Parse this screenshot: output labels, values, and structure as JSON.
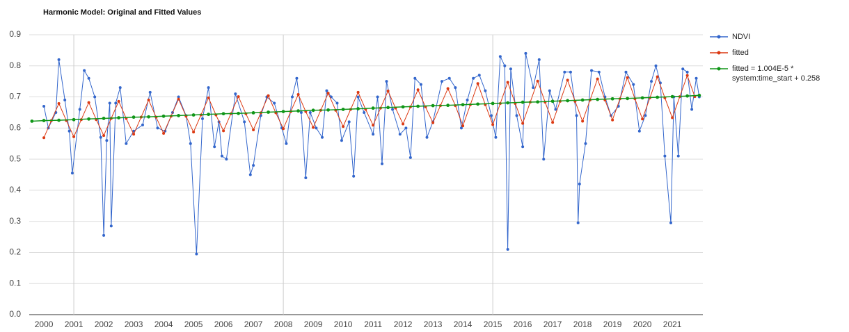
{
  "chart_data": {
    "type": "line",
    "title": "Harmonic Model: Original and Fitted Values",
    "xlim": [
      1999.51,
      2022.02
    ],
    "xticks": [
      2000,
      2001,
      2002,
      2003,
      2004,
      2005,
      2006,
      2007,
      2008,
      2009,
      2010,
      2011,
      2012,
      2013,
      2014,
      2015,
      2016,
      2017,
      2018,
      2019,
      2020,
      2021
    ],
    "xgrid": [
      2001,
      2008,
      2015
    ],
    "ylim": [
      0,
      0.9
    ],
    "yticks": [
      {
        "value": 0,
        "label": "0.0"
      },
      0.1,
      0.2,
      0.3,
      0.4,
      0.5,
      0.6,
      0.7,
      0.8,
      0.9
    ],
    "grid": true,
    "legend": "right",
    "series": [
      {
        "name": "NDVI",
        "color": "#3366cc",
        "x": [
          2000.0,
          2000.15,
          2000.4,
          2000.5,
          2000.7,
          2000.85,
          2000.95,
          2001.2,
          2001.35,
          2001.5,
          2001.7,
          2001.9,
          2002.0,
          2002.1,
          2002.2,
          2002.25,
          2002.4,
          2002.55,
          2002.75,
          2003.0,
          2003.3,
          2003.55,
          2003.8,
          2004.05,
          2004.3,
          2004.5,
          2004.75,
          2004.9,
          2005.1,
          2005.3,
          2005.5,
          2005.7,
          2005.85,
          2005.95,
          2006.1,
          2006.4,
          2006.7,
          2006.9,
          2007.0,
          2007.25,
          2007.45,
          2007.7,
          2007.95,
          2008.1,
          2008.3,
          2008.45,
          2008.6,
          2008.75,
          2008.9,
          2009.1,
          2009.3,
          2009.45,
          2009.6,
          2009.8,
          2009.95,
          2010.2,
          2010.35,
          2010.5,
          2010.7,
          2011.0,
          2011.15,
          2011.3,
          2011.45,
          2011.65,
          2011.9,
          2012.1,
          2012.25,
          2012.4,
          2012.6,
          2012.8,
          2013.0,
          2013.3,
          2013.55,
          2013.75,
          2013.95,
          2014.15,
          2014.35,
          2014.55,
          2014.75,
          2014.95,
          2015.1,
          2015.25,
          2015.4,
          2015.5,
          2015.6,
          2015.8,
          2016.0,
          2016.1,
          2016.35,
          2016.55,
          2016.7,
          2016.9,
          2017.1,
          2017.4,
          2017.6,
          2017.8,
          2017.85,
          2017.9,
          2018.1,
          2018.3,
          2018.55,
          2018.75,
          2018.95,
          2019.2,
          2019.45,
          2019.7,
          2019.9,
          2020.1,
          2020.3,
          2020.45,
          2020.6,
          2020.75,
          2020.95,
          2021.05,
          2021.2,
          2021.35,
          2021.5,
          2021.65,
          2021.8,
          2021.9
        ],
        "values": [
          0.67,
          0.6,
          0.65,
          0.82,
          0.69,
          0.59,
          0.455,
          0.66,
          0.785,
          0.76,
          0.7,
          0.57,
          0.255,
          0.56,
          0.68,
          0.285,
          0.68,
          0.73,
          0.55,
          0.59,
          0.61,
          0.715,
          0.6,
          0.59,
          0.65,
          0.7,
          0.64,
          0.55,
          0.195,
          0.63,
          0.73,
          0.54,
          0.62,
          0.51,
          0.5,
          0.71,
          0.62,
          0.45,
          0.48,
          0.64,
          0.7,
          0.68,
          0.6,
          0.55,
          0.7,
          0.76,
          0.65,
          0.44,
          0.65,
          0.6,
          0.57,
          0.72,
          0.7,
          0.68,
          0.56,
          0.62,
          0.445,
          0.7,
          0.65,
          0.58,
          0.7,
          0.485,
          0.75,
          0.66,
          0.58,
          0.6,
          0.505,
          0.76,
          0.74,
          0.57,
          0.62,
          0.75,
          0.76,
          0.73,
          0.6,
          0.69,
          0.76,
          0.77,
          0.72,
          0.64,
          0.57,
          0.83,
          0.8,
          0.21,
          0.79,
          0.64,
          0.54,
          0.84,
          0.73,
          0.82,
          0.5,
          0.72,
          0.66,
          0.78,
          0.78,
          0.64,
          0.295,
          0.42,
          0.55,
          0.785,
          0.78,
          0.7,
          0.64,
          0.67,
          0.78,
          0.74,
          0.59,
          0.64,
          0.75,
          0.8,
          0.745,
          0.51,
          0.295,
          0.7,
          0.51,
          0.79,
          0.78,
          0.66,
          0.76,
          0.7
        ]
      },
      {
        "name": "fitted",
        "color": "#dc3912",
        "x": [
          2000.0,
          2000.25,
          2000.5,
          2000.75,
          2001.0,
          2001.25,
          2001.5,
          2001.75,
          2002.0,
          2002.25,
          2002.5,
          2002.75,
          2003.0,
          2003.25,
          2003.5,
          2003.75,
          2004.0,
          2004.25,
          2004.5,
          2004.75,
          2005.0,
          2005.25,
          2005.5,
          2005.75,
          2006.0,
          2006.25,
          2006.5,
          2006.75,
          2007.0,
          2007.25,
          2007.5,
          2007.75,
          2008.0,
          2008.25,
          2008.5,
          2008.75,
          2009.0,
          2009.25,
          2009.5,
          2009.75,
          2010.0,
          2010.25,
          2010.5,
          2010.75,
          2011.0,
          2011.25,
          2011.5,
          2011.75,
          2012.0,
          2012.25,
          2012.5,
          2012.75,
          2013.0,
          2013.25,
          2013.5,
          2013.75,
          2014.0,
          2014.25,
          2014.5,
          2014.75,
          2015.0,
          2015.25,
          2015.5,
          2015.75,
          2016.0,
          2016.25,
          2016.5,
          2016.75,
          2017.0,
          2017.25,
          2017.5,
          2017.75,
          2018.0,
          2018.25,
          2018.5,
          2018.75,
          2019.0,
          2019.25,
          2019.5,
          2019.75,
          2020.0,
          2020.25,
          2020.5,
          2020.75,
          2021.0,
          2021.25,
          2021.5,
          2021.75
        ],
        "values": [
          0.569,
          0.624,
          0.679,
          0.624,
          0.572,
          0.627,
          0.682,
          0.627,
          0.576,
          0.631,
          0.686,
          0.631,
          0.58,
          0.635,
          0.69,
          0.635,
          0.583,
          0.638,
          0.693,
          0.638,
          0.587,
          0.642,
          0.697,
          0.642,
          0.591,
          0.646,
          0.701,
          0.646,
          0.594,
          0.649,
          0.704,
          0.649,
          0.598,
          0.653,
          0.708,
          0.653,
          0.602,
          0.657,
          0.712,
          0.657,
          0.605,
          0.66,
          0.715,
          0.66,
          0.609,
          0.664,
          0.719,
          0.664,
          0.613,
          0.668,
          0.723,
          0.668,
          0.617,
          0.672,
          0.727,
          0.672,
          0.607,
          0.675,
          0.743,
          0.675,
          0.611,
          0.679,
          0.747,
          0.679,
          0.615,
          0.683,
          0.751,
          0.683,
          0.618,
          0.686,
          0.754,
          0.686,
          0.622,
          0.69,
          0.758,
          0.69,
          0.626,
          0.694,
          0.762,
          0.694,
          0.629,
          0.697,
          0.765,
          0.697,
          0.633,
          0.701,
          0.769,
          0.701
        ]
      },
      {
        "name": "fitted = 1.004E-5 * system:time_start + 0.258",
        "color": "#109618",
        "x": [
          1999.6,
          2000.0,
          2000.5,
          2001.0,
          2001.5,
          2002.0,
          2002.5,
          2003.0,
          2003.5,
          2004.0,
          2004.5,
          2005.0,
          2005.5,
          2006.0,
          2006.5,
          2007.0,
          2007.5,
          2008.0,
          2008.5,
          2009.0,
          2009.5,
          2010.0,
          2010.5,
          2011.0,
          2011.5,
          2012.0,
          2012.5,
          2013.0,
          2013.5,
          2014.0,
          2014.5,
          2015.0,
          2015.5,
          2016.0,
          2016.5,
          2017.0,
          2017.5,
          2018.0,
          2018.5,
          2019.0,
          2019.5,
          2020.0,
          2020.5,
          2021.0,
          2021.5,
          2021.9
        ],
        "values": [
          0.622,
          0.624,
          0.625,
          0.627,
          0.629,
          0.631,
          0.633,
          0.635,
          0.636,
          0.638,
          0.64,
          0.642,
          0.644,
          0.646,
          0.647,
          0.649,
          0.651,
          0.653,
          0.655,
          0.657,
          0.658,
          0.66,
          0.662,
          0.664,
          0.666,
          0.668,
          0.67,
          0.672,
          0.673,
          0.675,
          0.677,
          0.679,
          0.681,
          0.683,
          0.684,
          0.686,
          0.688,
          0.69,
          0.692,
          0.694,
          0.695,
          0.697,
          0.699,
          0.701,
          0.703,
          0.705
        ]
      }
    ]
  }
}
